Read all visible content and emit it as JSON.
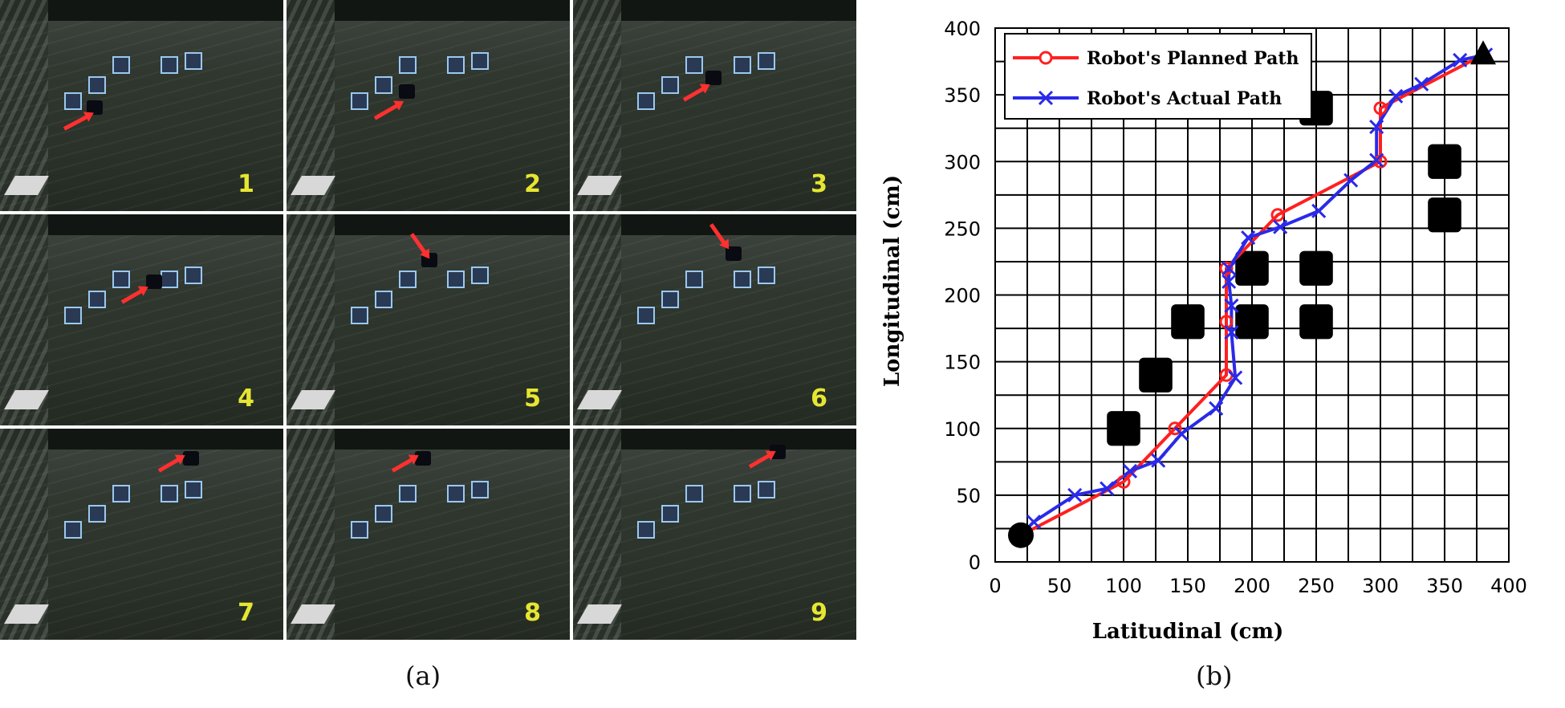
{
  "panel_a": {
    "caption": "(a)",
    "frames": [
      {
        "number": "1"
      },
      {
        "number": "2"
      },
      {
        "number": "3"
      },
      {
        "number": "4"
      },
      {
        "number": "5"
      },
      {
        "number": "6"
      },
      {
        "number": "7"
      },
      {
        "number": "8"
      },
      {
        "number": "9"
      }
    ]
  },
  "panel_b": {
    "caption": "(b)"
  },
  "colors": {
    "planned": "#ff2020",
    "actual": "#2a2ae8",
    "grid": "#000000",
    "obstacle": "#000000"
  },
  "chart_data": {
    "type": "line",
    "title": "",
    "xlabel": "Latitudinal (cm)",
    "ylabel": "Longitudinal (cm)",
    "xlim": [
      0,
      400
    ],
    "ylim": [
      0,
      400
    ],
    "xticks": [
      0,
      50,
      100,
      150,
      200,
      250,
      300,
      350,
      400
    ],
    "yticks": [
      0,
      50,
      100,
      150,
      200,
      250,
      300,
      350,
      400
    ],
    "grid_step": 25,
    "legend_position": "top-left",
    "series": [
      {
        "name": "Robot's Planned Path",
        "marker": "circle",
        "x": [
          20,
          100,
          140,
          180,
          180,
          180,
          220,
          300,
          300,
          380
        ],
        "y": [
          20,
          60,
          100,
          140,
          180,
          220,
          260,
          300,
          340,
          380
        ]
      },
      {
        "name": "Robot's Actual Path",
        "marker": "x",
        "x": [
          20,
          30,
          62,
          87,
          105,
          127,
          145,
          172,
          187,
          184,
          184,
          182,
          182,
          197,
          222,
          252,
          277,
          297,
          297,
          312,
          332,
          362,
          382
        ],
        "y": [
          20,
          30,
          50,
          55,
          68,
          76,
          96,
          115,
          138,
          172,
          192,
          210,
          220,
          243,
          251,
          263,
          286,
          301,
          326,
          349,
          358,
          376,
          380
        ]
      }
    ],
    "obstacles": [
      {
        "x": 100,
        "y": 100
      },
      {
        "x": 125,
        "y": 140
      },
      {
        "x": 150,
        "y": 180
      },
      {
        "x": 200,
        "y": 180
      },
      {
        "x": 200,
        "y": 220
      },
      {
        "x": 250,
        "y": 180
      },
      {
        "x": 250,
        "y": 220
      },
      {
        "x": 250,
        "y": 340
      },
      {
        "x": 350,
        "y": 260
      },
      {
        "x": 350,
        "y": 300
      }
    ],
    "start": {
      "x": 20,
      "y": 20,
      "marker": "filled-circle"
    },
    "goal": {
      "x": 380,
      "y": 380,
      "marker": "filled-triangle"
    }
  }
}
